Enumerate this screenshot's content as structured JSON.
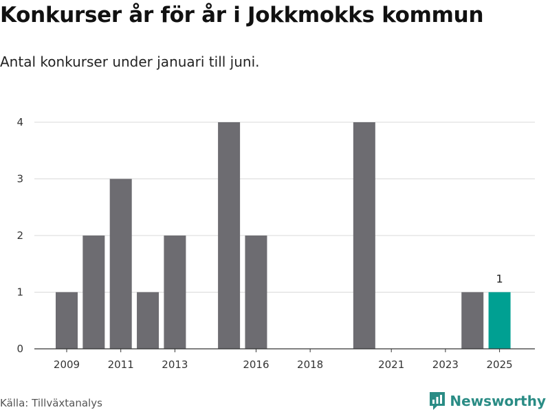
{
  "header": {
    "title": "Konkurser år för år i Jokkmokks kommun",
    "subtitle": "Antal konkurser under januari till juni."
  },
  "footer": {
    "source": "Källa: Tillväxtanalys",
    "brand": "Newsworthy"
  },
  "colors": {
    "bar": "#6d6c71",
    "highlight": "#00a092",
    "grid": "#d9d9d9",
    "axis": "#333333",
    "brand": "#2a8c85"
  },
  "chart_data": {
    "type": "bar",
    "categories": [
      "2009",
      "2010",
      "2011",
      "2012",
      "2013",
      "2014",
      "2015",
      "2016",
      "2017",
      "2018",
      "2019",
      "2020",
      "2021",
      "2022",
      "2023",
      "2024",
      "2025"
    ],
    "values": [
      1,
      2,
      3,
      1,
      2,
      0,
      4,
      2,
      0,
      0,
      0,
      4,
      0,
      0,
      0,
      1,
      1
    ],
    "x_tick_labels": [
      "2009",
      "2011",
      "2013",
      "2016",
      "2018",
      "2021",
      "2023",
      "2025"
    ],
    "y_ticks": [
      0,
      1,
      2,
      3,
      4
    ],
    "ylim": [
      0,
      4
    ],
    "highlight_category": "2025",
    "data_labels": [
      {
        "category": "2025",
        "text": "1"
      }
    ],
    "grid": true,
    "title": "Konkurser år för år i Jokkmokks kommun",
    "xlabel": "",
    "ylabel": ""
  }
}
